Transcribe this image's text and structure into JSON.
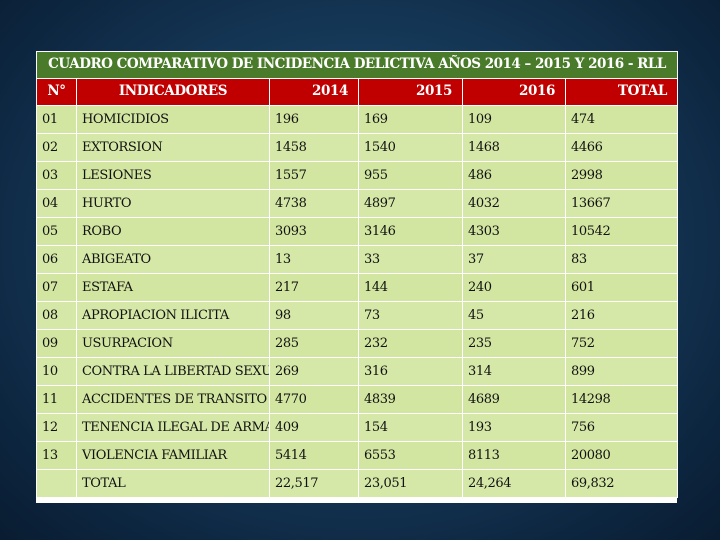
{
  "title": "CUADRO COMPARATIVO DE INCIDENCIA DELICTIVA AÑOS 2014 – 2015  Y 2016 - RLL",
  "headers": [
    "N°",
    "INDICADORES",
    "2014",
    "2015",
    "2016",
    "TOTAL"
  ],
  "rows": [
    {
      "n": "01",
      "ind": "HOMICIDIOS",
      "y2014": "196",
      "y2015": "169",
      "y2016": "109",
      "total": "474"
    },
    {
      "n": "02",
      "ind": "EXTORSION",
      "y2014": "1458",
      "y2015": "1540",
      "y2016": "1468",
      "total": "4466"
    },
    {
      "n": "03",
      "ind": "LESIONES",
      "y2014": "1557",
      "y2015": "955",
      "y2016": "486",
      "total": "2998"
    },
    {
      "n": "04",
      "ind": "HURTO",
      "y2014": "4738",
      "y2015": "4897",
      "y2016": "4032",
      "total": "13667"
    },
    {
      "n": "05",
      "ind": "ROBO",
      "y2014": "3093",
      "y2015": "3146",
      "y2016": "4303",
      "total": "10542"
    },
    {
      "n": "06",
      "ind": "ABIGEATO",
      "y2014": "13",
      "y2015": "33",
      "y2016": "37",
      "total": "83"
    },
    {
      "n": "07",
      "ind": "ESTAFA",
      "y2014": "217",
      "y2015": "144",
      "y2016": "240",
      "total": "601"
    },
    {
      "n": "08",
      "ind": "APROPIACION ILICITA",
      "y2014": "98",
      "y2015": "73",
      "y2016": "45",
      "total": "216"
    },
    {
      "n": "09",
      "ind": "USURPACION",
      "y2014": "285",
      "y2015": "232",
      "y2016": "235",
      "total": "752"
    },
    {
      "n": "10",
      "ind": "CONTRA LA LIBERTAD SEXUAL",
      "y2014": "269",
      "y2015": "316",
      "y2016": "314",
      "total": "899"
    },
    {
      "n": "11",
      "ind": "ACCIDENTES DE TRANSITO",
      "y2014": "4770",
      "y2015": "4839",
      "y2016": "4689",
      "total": "14298"
    },
    {
      "n": "12",
      "ind": "TENENCIA ILEGAL DE ARMAS",
      "y2014": "409",
      "y2015": "154",
      "y2016": "193",
      "total": "756"
    },
    {
      "n": "13",
      "ind": "VIOLENCIA FAMILIAR",
      "y2014": "5414",
      "y2015": "6553",
      "y2016": "8113",
      "total": "20080"
    }
  ],
  "totals": {
    "n": "",
    "ind": "TOTAL",
    "y2014": "22,517",
    "y2015": "23,051",
    "y2016": "24,264",
    "total": "69,832"
  }
}
